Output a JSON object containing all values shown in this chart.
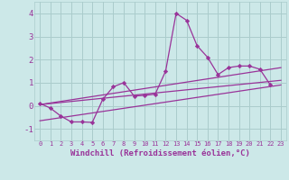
{
  "background_color": "#cce8e8",
  "grid_color": "#aacccc",
  "line_color": "#993399",
  "marker_color": "#993399",
  "xlabel": "Windchill (Refroidissement éolien,°C)",
  "xlabel_fontsize": 6.5,
  "ylabel_ticks": [
    -1,
    0,
    1,
    2,
    3,
    4
  ],
  "xlim": [
    -0.5,
    23.5
  ],
  "ylim": [
    -1.5,
    4.5
  ],
  "xtick_labels": [
    "0",
    "1",
    "2",
    "3",
    "4",
    "5",
    "6",
    "7",
    "8",
    "9",
    "10",
    "11",
    "12",
    "13",
    "14",
    "15",
    "16",
    "17",
    "18",
    "19",
    "20",
    "21",
    "22",
    "23"
  ],
  "scatter_x": [
    0,
    1,
    2,
    3,
    4,
    5,
    6,
    7,
    8,
    9,
    10,
    11,
    12,
    13,
    14,
    15,
    16,
    17,
    18,
    19,
    20,
    21,
    22
  ],
  "scatter_y": [
    0.1,
    -0.1,
    -0.45,
    -0.7,
    -0.7,
    -0.72,
    0.28,
    0.82,
    1.0,
    0.42,
    0.45,
    0.5,
    1.5,
    4.0,
    3.7,
    2.6,
    2.1,
    1.35,
    1.65,
    1.72,
    1.72,
    1.58,
    0.9
  ],
  "line1_x": [
    0,
    23
  ],
  "line1_y": [
    0.05,
    1.1
  ],
  "line2_x": [
    0,
    23
  ],
  "line2_y": [
    0.05,
    1.65
  ],
  "line3_x": [
    0,
    23
  ],
  "line3_y": [
    -0.65,
    0.9
  ]
}
